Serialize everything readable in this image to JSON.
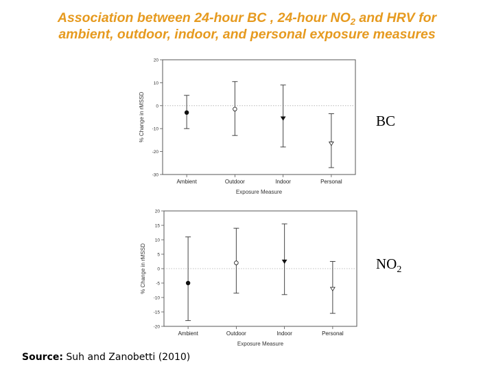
{
  "title": {
    "line1_a": "Association between 24-hour BC , 24-hour NO",
    "line1_sub": "2",
    "line1_b": " and HRV for",
    "line2": "ambient, outdoor, indoor, and personal exposure measures"
  },
  "chart_data": [
    {
      "type": "errorbar",
      "label": "BC",
      "ylabel": "% Change in rMSSD",
      "xlabel": "Exposure Measure",
      "categories": [
        "Ambient",
        "Outdoor",
        "Indoor",
        "Personal"
      ],
      "values": [
        -3,
        -1.5,
        -5.5,
        -16.5
      ],
      "lower": [
        -10,
        -13,
        -18,
        -27
      ],
      "upper": [
        4.5,
        10.5,
        9,
        -3.5
      ],
      "markers": [
        "filled-circle",
        "open-circle",
        "filled-triangle",
        "open-triangle"
      ],
      "ylim": [
        -30,
        20
      ],
      "yticks": [
        20,
        10,
        0,
        -10,
        -20,
        -30
      ],
      "reference_line": 0
    },
    {
      "type": "errorbar",
      "label_main": "NO",
      "label_sub": "2",
      "ylabel": "% Change in rMSSD",
      "xlabel": "Exposure Measure",
      "categories": [
        "Ambient",
        "Outdoor",
        "Indoor",
        "Personal"
      ],
      "values": [
        -5,
        2,
        2.5,
        -7
      ],
      "lower": [
        -18,
        -8.5,
        -9,
        -15.5
      ],
      "upper": [
        11,
        14,
        15.5,
        2.5
      ],
      "markers": [
        "filled-circle",
        "open-circle",
        "filled-triangle",
        "open-triangle"
      ],
      "ylim": [
        -20,
        20
      ],
      "yticks": [
        20,
        15,
        10,
        5,
        0,
        -5,
        -10,
        -15,
        -20
      ],
      "reference_line": 0
    }
  ],
  "source": {
    "label": "Source:",
    "text": " Suh and Zanobetti (2010)"
  }
}
